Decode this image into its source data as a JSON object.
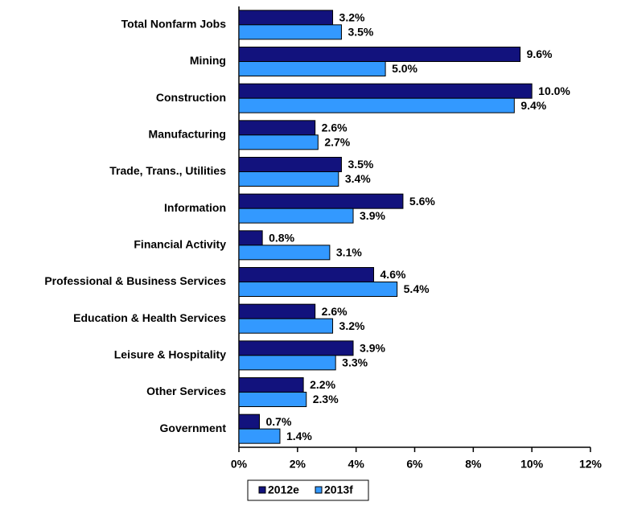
{
  "chart_data": {
    "type": "bar",
    "orientation": "horizontal",
    "categories": [
      "Total Nonfarm Jobs",
      "Mining",
      "Construction",
      "Manufacturing",
      "Trade, Trans., Utilities",
      "Information",
      "Financial Activity",
      "Professional & Business Services",
      "Education & Health Services",
      "Leisure & Hospitality",
      "Other Services",
      "Government"
    ],
    "series": [
      {
        "name": "2012e",
        "color": "#12127d",
        "values": [
          3.2,
          9.6,
          10.0,
          2.6,
          3.5,
          5.6,
          0.8,
          4.6,
          2.6,
          3.9,
          2.2,
          0.7
        ],
        "value_labels": [
          "3.2%",
          "9.6%",
          "10.0%",
          "2.6%",
          "3.5%",
          "5.6%",
          "0.8%",
          "4.6%",
          "2.6%",
          "3.9%",
          "2.2%",
          "0.7%"
        ]
      },
      {
        "name": "2013f",
        "color": "#3399ff",
        "values": [
          3.5,
          5.0,
          9.4,
          2.7,
          3.4,
          3.9,
          3.1,
          5.4,
          3.2,
          3.3,
          2.3,
          1.4
        ],
        "value_labels": [
          "3.5%",
          "5.0%",
          "9.4%",
          "2.7%",
          "3.4%",
          "3.9%",
          "3.1%",
          "5.4%",
          "3.2%",
          "3.3%",
          "2.3%",
          "1.4%"
        ]
      }
    ],
    "xlim": [
      0,
      12
    ],
    "xticks": [
      {
        "value": 0,
        "label": "0%"
      },
      {
        "value": 2,
        "label": "2%"
      },
      {
        "value": 4,
        "label": "4%"
      },
      {
        "value": 6,
        "label": "6%"
      },
      {
        "value": 8,
        "label": "8%"
      },
      {
        "value": 10,
        "label": "10%"
      },
      {
        "value": 12,
        "label": "12%"
      }
    ],
    "legend": "bottom"
  }
}
